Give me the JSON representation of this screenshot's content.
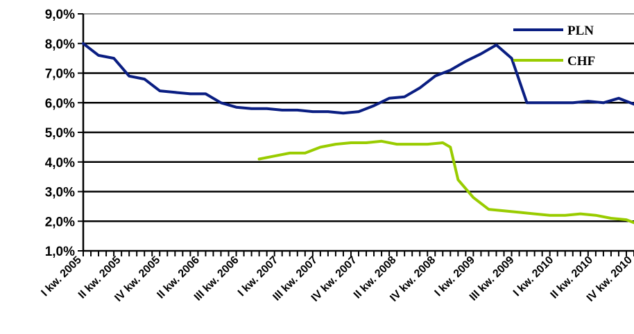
{
  "chart_data": {
    "type": "line",
    "title": "",
    "xlabel": "",
    "ylabel": "",
    "ylim": [
      1.0,
      9.0
    ],
    "y_ticks": [
      "1,0%",
      "2,0%",
      "3,0%",
      "4,0%",
      "5,0%",
      "6,0%",
      "7,0%",
      "8,0%",
      "9,0%"
    ],
    "x_tick_labels": [
      "I kw. 2005",
      "II kw. 2005",
      "IV kw. 2005",
      "II kw. 2006",
      "III kw. 2006",
      "I kw. 2007",
      "III kw. 2007",
      "IV kw. 2007",
      "II kw. 2008",
      "IV kw. 2008",
      "I kw. 2009",
      "III kw. 2009",
      "I kw. 2010",
      "II kw. 2010",
      "IV kw. 2010"
    ],
    "grid": true,
    "legend": {
      "placement": "top-right",
      "entries": [
        "PLN",
        "CHF"
      ]
    },
    "series": [
      {
        "name": "PLN",
        "color": "#0a1e82",
        "x": [
          0,
          2,
          4,
          6,
          8,
          10,
          12,
          14,
          16,
          18,
          20,
          22,
          24,
          26,
          28,
          30,
          32,
          34,
          36,
          38,
          40,
          42,
          44,
          46,
          48,
          50,
          52,
          54,
          56,
          58,
          60,
          62,
          64,
          66,
          68,
          70,
          72
        ],
        "values": [
          8.0,
          7.6,
          7.5,
          6.9,
          6.8,
          6.4,
          6.35,
          6.3,
          6.3,
          6.0,
          5.85,
          5.8,
          5.8,
          5.75,
          5.75,
          5.7,
          5.7,
          5.65,
          5.7,
          5.9,
          6.15,
          6.2,
          6.5,
          6.9,
          7.1,
          7.4,
          7.65,
          7.95,
          7.5,
          6.0,
          6.0,
          6.0,
          6.0,
          6.05,
          6.0,
          6.15,
          5.95
        ]
      },
      {
        "name": "CHF",
        "color": "#99cc00",
        "x": [
          23,
          25,
          27,
          29,
          31,
          33,
          35,
          37,
          39,
          41,
          43,
          45,
          47,
          48,
          49,
          51,
          53,
          55,
          57,
          59,
          61,
          63,
          65,
          67,
          69,
          71,
          72
        ],
        "values": [
          4.1,
          4.2,
          4.3,
          4.3,
          4.5,
          4.6,
          4.65,
          4.65,
          4.7,
          4.6,
          4.6,
          4.6,
          4.65,
          4.5,
          3.4,
          2.8,
          2.4,
          2.35,
          2.3,
          2.25,
          2.2,
          2.2,
          2.25,
          2.2,
          2.1,
          2.05,
          1.95
        ]
      }
    ]
  }
}
